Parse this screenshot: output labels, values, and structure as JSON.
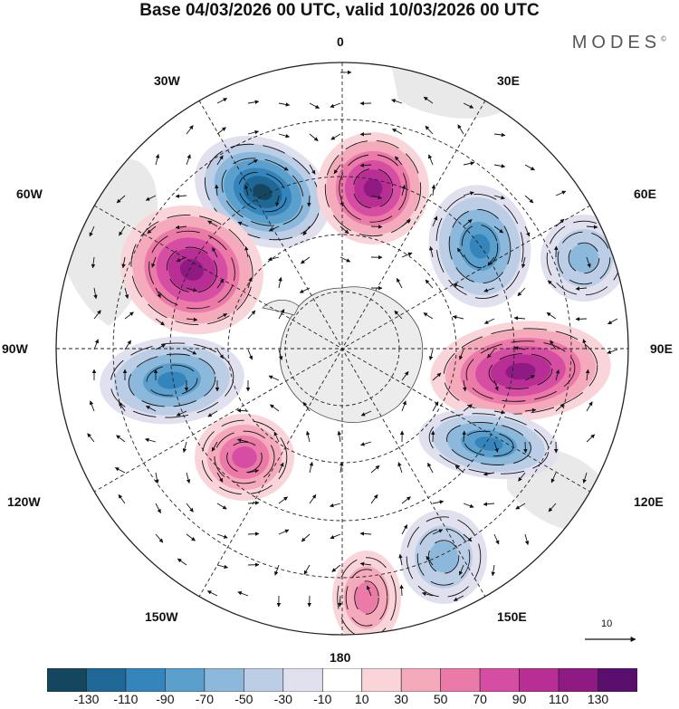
{
  "header": {
    "title": "Base 04/03/2026 00 UTC, valid 10/03/2026 00 UTC",
    "brand": "MODES",
    "brand_mark": "©"
  },
  "longitudes": {
    "top": "0",
    "bottom": "180",
    "w30": "30W",
    "e30": "30E",
    "w60": "60W",
    "e60": "60E",
    "w90": "90W",
    "e90": "90E",
    "w120": "120W",
    "e120": "120E",
    "w150": "150W",
    "e150": "150E"
  },
  "colorbar": {
    "ticks": [
      "-130",
      "-110",
      "-90",
      "-70",
      "-50",
      "-30",
      "-10",
      "10",
      "30",
      "50",
      "70",
      "90",
      "110",
      "130"
    ],
    "colors": [
      "#15465f",
      "#1f6895",
      "#3585bd",
      "#5b9fcc",
      "#8cb9db",
      "#bccde6",
      "#e0e0ef",
      "#ffffff",
      "#f9d4d9",
      "#f4aabb",
      "#ec7aa8",
      "#d64ea3",
      "#b92e94",
      "#8f1a84",
      "#5a0f6e"
    ]
  },
  "reference_vector": {
    "label": "10"
  },
  "anomalies": [
    {
      "name": "low-30w",
      "sign": "negative",
      "peak": -130
    },
    {
      "name": "high-10e",
      "sign": "positive",
      "peak": 110
    },
    {
      "name": "low-50e",
      "sign": "negative",
      "peak": -90
    },
    {
      "name": "low-75e",
      "sign": "negative",
      "peak": -50
    },
    {
      "name": "high-60w",
      "sign": "positive",
      "peak": 110
    },
    {
      "name": "high-90e",
      "sign": "positive",
      "peak": 110
    },
    {
      "name": "low-100w",
      "sign": "negative",
      "peak": -90
    },
    {
      "name": "low-110e",
      "sign": "negative",
      "peak": -90
    },
    {
      "name": "high-135w",
      "sign": "positive",
      "peak": 70
    },
    {
      "name": "low-150e",
      "sign": "negative",
      "peak": -50
    },
    {
      "name": "high-175e",
      "sign": "positive",
      "peak": 50
    }
  ]
}
